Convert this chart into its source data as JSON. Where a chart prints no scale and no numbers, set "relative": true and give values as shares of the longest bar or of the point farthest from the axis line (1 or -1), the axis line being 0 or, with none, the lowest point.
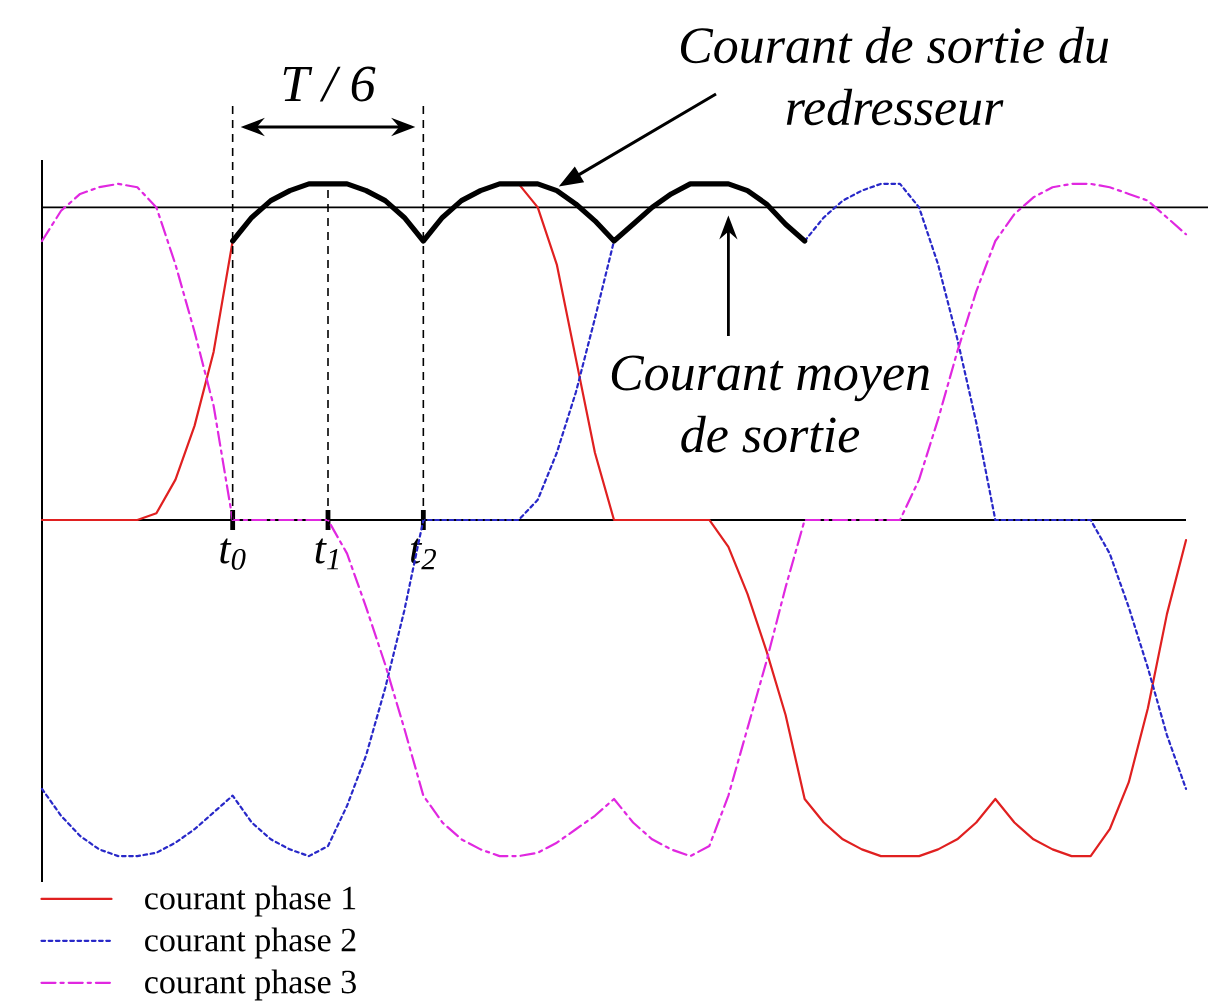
{
  "chart_data": {
    "type": "line",
    "relative": true,
    "legend": "bottom left",
    "categories": [
      null,
      null,
      null,
      null,
      null,
      null,
      null,
      null,
      null,
      null,
      "t$_{0}$",
      null,
      null,
      null,
      null,
      "t$_{1}$",
      null,
      null,
      null,
      null,
      "t$_{2}$",
      null,
      null,
      null,
      null,
      null,
      null,
      null,
      null,
      null,
      null,
      null,
      null,
      null,
      null,
      null,
      null,
      null,
      null,
      null,
      null,
      null,
      null,
      null,
      null,
      null,
      null,
      null,
      null,
      null,
      null,
      null,
      null,
      null,
      null,
      null,
      null,
      null,
      null,
      null,
      null
    ],
    "series": [
      {
        "name": "courant phase 1",
        "color": "#e02020",
        "line_style": "solid",
        "values": [
          0,
          0,
          0,
          0,
          0,
          0,
          0.02,
          0.12,
          0.28,
          0.5,
          0.83,
          0.9,
          0.95,
          0.98,
          1.0,
          1.0,
          1.0,
          0.98,
          0.95,
          0.9,
          0.83,
          0.9,
          0.95,
          0.98,
          1.0,
          1.0,
          0.93,
          0.76,
          0.48,
          0.2,
          0,
          0,
          0,
          0,
          0,
          0,
          -0.08,
          -0.22,
          -0.39,
          -0.58,
          -0.83,
          -0.9,
          -0.95,
          -0.98,
          -1.0,
          -1.0,
          -1.0,
          -0.98,
          -0.95,
          -0.9,
          -0.83,
          -0.9,
          -0.95,
          -0.98,
          -1.0,
          -1.0,
          -0.92,
          -0.78,
          -0.56,
          -0.28,
          -0.06
        ]
      },
      {
        "name": "courant phase 2",
        "color": "#2828c8",
        "line_style": "dotted",
        "values": [
          -0.8,
          -0.88,
          -0.94,
          -0.98,
          -1.0,
          -1.0,
          -0.99,
          -0.96,
          -0.92,
          -0.87,
          -0.82,
          -0.9,
          -0.95,
          -0.98,
          -1.0,
          -0.97,
          -0.85,
          -0.7,
          -0.5,
          -0.27,
          0,
          0,
          0,
          0,
          0,
          0,
          0.06,
          0.2,
          0.38,
          0.6,
          0.83,
          0.88,
          0.93,
          0.97,
          1.0,
          1.0,
          1.0,
          0.98,
          0.94,
          0.88,
          0.83,
          0.9,
          0.95,
          0.98,
          1.0,
          1.0,
          0.93,
          0.76,
          0.54,
          0.29,
          0,
          0,
          0,
          0,
          0,
          0,
          -0.1,
          -0.26,
          -0.44,
          -0.64,
          -0.8
        ]
      },
      {
        "name": "courant phase 3",
        "color": "#e028e0",
        "line_style": "dashed",
        "values": [
          0.83,
          0.92,
          0.97,
          0.99,
          1.0,
          0.99,
          0.93,
          0.76,
          0.56,
          0.34,
          0,
          0,
          0,
          0,
          0,
          0,
          -0.1,
          -0.26,
          -0.43,
          -0.62,
          -0.82,
          -0.9,
          -0.95,
          -0.98,
          -1.0,
          -1.0,
          -0.99,
          -0.96,
          -0.92,
          -0.88,
          -0.83,
          -0.9,
          -0.95,
          -0.98,
          -1.0,
          -0.97,
          -0.82,
          -0.62,
          -0.42,
          -0.2,
          0,
          0,
          0,
          0,
          0,
          0,
          0.12,
          0.3,
          0.5,
          0.68,
          0.83,
          0.91,
          0.96,
          0.99,
          1.0,
          1.0,
          0.99,
          0.97,
          0.95,
          0.9,
          0.85
        ]
      },
      {
        "name": "Courant de sortie du redresseur",
        "color": "#000000",
        "line_style": "solid",
        "values": [
          null,
          null,
          null,
          null,
          null,
          null,
          null,
          null,
          null,
          null,
          0.83,
          0.9,
          0.95,
          0.98,
          1.0,
          1.0,
          1.0,
          0.98,
          0.95,
          0.9,
          0.83,
          0.9,
          0.95,
          0.98,
          1.0,
          1.0,
          1.0,
          0.98,
          0.94,
          0.89,
          0.83,
          0.88,
          0.93,
          0.97,
          1.0,
          1.0,
          1.0,
          0.98,
          0.94,
          0.88,
          0.83,
          null,
          null,
          null,
          null,
          null,
          null,
          null,
          null,
          null,
          null,
          null,
          null,
          null,
          null,
          null,
          null,
          null,
          null,
          null,
          null
        ]
      }
    ],
    "ref_lines": [
      {
        "axis": "y",
        "value": 0.93,
        "label": "Courant moyen de sortie"
      }
    ],
    "annotations": [
      "T / 6"
    ]
  }
}
